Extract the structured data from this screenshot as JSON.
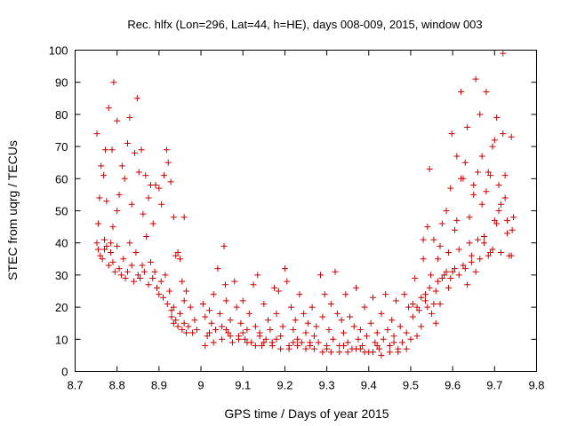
{
  "chart_data": {
    "type": "scatter",
    "title": "Rec. hlfx (Lon=296, Lat=44, h=HE), days 008-009, 2015, window 003",
    "xlabel": "GPS time / Days of year 2015",
    "ylabel": "STEC from uqrg / TECUs",
    "xlim": [
      8.7,
      9.8
    ],
    "ylim": [
      0,
      100
    ],
    "xticks": [
      "8.7",
      "8.8",
      "8.9",
      "9",
      "9.1",
      "9.2",
      "9.3",
      "9.4",
      "9.5",
      "9.6",
      "9.7",
      "9.8"
    ],
    "yticks": [
      "0",
      "10",
      "20",
      "30",
      "40",
      "50",
      "60",
      "70",
      "80",
      "90",
      "100"
    ],
    "grid": false,
    "marker": "+",
    "marker_color": "#cc0000",
    "series": [
      {
        "points": [
          [
            8.752,
            74
          ],
          [
            8.758,
            54
          ],
          [
            8.755,
            46
          ],
          [
            8.762,
            64
          ],
          [
            8.768,
            61
          ],
          [
            8.775,
            53
          ],
          [
            8.772,
            69
          ],
          [
            8.78,
            82
          ],
          [
            8.788,
            69
          ],
          [
            8.792,
            90
          ],
          [
            8.8,
            78
          ],
          [
            8.805,
            55
          ],
          [
            8.8,
            50
          ],
          [
            8.812,
            64
          ],
          [
            8.818,
            60
          ],
          [
            8.825,
            71
          ],
          [
            8.83,
            79
          ],
          [
            8.835,
            52
          ],
          [
            8.842,
            68
          ],
          [
            8.848,
            85
          ],
          [
            8.852,
            62
          ],
          [
            8.858,
            69
          ],
          [
            8.862,
            49
          ],
          [
            8.868,
            61
          ],
          [
            8.875,
            54
          ],
          [
            8.88,
            58
          ],
          [
            8.886,
            46
          ],
          [
            8.892,
            58
          ],
          [
            8.9,
            57
          ],
          [
            8.906,
            52
          ],
          [
            8.912,
            61
          ],
          [
            8.918,
            69
          ],
          [
            8.922,
            65
          ],
          [
            8.928,
            59
          ],
          [
            8.935,
            48
          ],
          [
            8.96,
            48
          ],
          [
            8.79,
            45
          ],
          [
            8.785,
            40
          ],
          [
            8.77,
            38
          ],
          [
            8.752,
            40
          ],
          [
            8.755,
            38
          ],
          [
            8.76,
            36
          ],
          [
            8.765,
            35
          ],
          [
            8.77,
            41
          ],
          [
            8.775,
            39
          ],
          [
            8.78,
            33
          ],
          [
            8.785,
            37
          ],
          [
            8.79,
            34
          ],
          [
            8.795,
            31
          ],
          [
            8.8,
            39
          ],
          [
            8.805,
            32
          ],
          [
            8.81,
            30
          ],
          [
            8.815,
            35
          ],
          [
            8.82,
            29
          ],
          [
            8.825,
            31
          ],
          [
            8.83,
            40
          ],
          [
            8.835,
            33
          ],
          [
            8.84,
            28
          ],
          [
            8.845,
            37
          ],
          [
            8.85,
            30
          ],
          [
            8.855,
            29
          ],
          [
            8.86,
            33
          ],
          [
            8.865,
            31
          ],
          [
            8.87,
            42
          ],
          [
            8.875,
            27
          ],
          [
            8.88,
            34
          ],
          [
            8.885,
            29
          ],
          [
            8.89,
            31
          ],
          [
            8.895,
            26
          ],
          [
            8.9,
            24
          ],
          [
            8.905,
            28
          ],
          [
            8.91,
            23
          ],
          [
            8.915,
            30
          ],
          [
            8.92,
            21
          ],
          [
            8.925,
            25
          ],
          [
            8.93,
            19
          ],
          [
            8.935,
            20
          ],
          [
            8.94,
            36
          ],
          [
            8.945,
            37
          ],
          [
            8.95,
            35
          ],
          [
            8.955,
            28
          ],
          [
            8.96,
            22
          ],
          [
            8.965,
            25
          ],
          [
            8.93,
            17
          ],
          [
            8.935,
            15
          ],
          [
            8.94,
            16
          ],
          [
            8.945,
            14
          ],
          [
            8.95,
            18
          ],
          [
            8.955,
            13
          ],
          [
            8.96,
            15
          ],
          [
            8.965,
            12
          ],
          [
            8.97,
            14
          ],
          [
            8.975,
            20
          ],
          [
            8.98,
            12
          ],
          [
            8.985,
            16
          ],
          [
            8.99,
            13
          ],
          [
            9.005,
            21
          ],
          [
            9.01,
            17
          ],
          [
            9.015,
            11
          ],
          [
            9.02,
            19
          ],
          [
            9.025,
            15
          ],
          [
            9.03,
            24
          ],
          [
            9.035,
            13
          ],
          [
            9.04,
            32
          ],
          [
            9.045,
            18
          ],
          [
            9.05,
            14
          ],
          [
            9.055,
            39
          ],
          [
            9.058,
            27
          ],
          [
            9.06,
            22
          ],
          [
            9.065,
            12
          ],
          [
            9.07,
            16
          ],
          [
            9.075,
            9
          ],
          [
            9.08,
            28
          ],
          [
            9.085,
            20
          ],
          [
            9.09,
            11
          ],
          [
            9.095,
            15
          ],
          [
            9.1,
            22
          ],
          [
            9.105,
            10
          ],
          [
            9.11,
            13
          ],
          [
            9.115,
            18
          ],
          [
            9.12,
            9
          ],
          [
            9.125,
            27
          ],
          [
            9.13,
            14
          ],
          [
            9.135,
            30
          ],
          [
            9.14,
            12
          ],
          [
            9.145,
            8
          ],
          [
            9.15,
            21
          ],
          [
            9.155,
            10
          ],
          [
            9.16,
            16
          ],
          [
            9.165,
            13
          ],
          [
            9.17,
            9
          ],
          [
            9.175,
            26
          ],
          [
            9.18,
            18
          ],
          [
            9.185,
            25
          ],
          [
            9.19,
            11
          ],
          [
            9.195,
            14
          ],
          [
            9.2,
            32
          ],
          [
            9.205,
            28
          ],
          [
            9.21,
            8
          ],
          [
            9.215,
            20
          ],
          [
            9.22,
            13
          ],
          [
            9.225,
            16
          ],
          [
            9.23,
            10
          ],
          [
            9.235,
            24
          ],
          [
            9.24,
            9
          ],
          [
            9.245,
            18
          ],
          [
            9.25,
            12
          ],
          [
            9.255,
            15
          ],
          [
            9.26,
            8
          ],
          [
            9.265,
            20
          ],
          [
            9.27,
            11
          ],
          [
            9.275,
            14
          ],
          [
            9.28,
            9
          ],
          [
            9.285,
            30
          ],
          [
            9.29,
            17
          ],
          [
            9.295,
            24
          ],
          [
            9.3,
            7
          ],
          [
            9.305,
            13
          ],
          [
            9.31,
            21
          ],
          [
            9.315,
            10
          ],
          [
            9.32,
            31
          ],
          [
            9.325,
            18
          ],
          [
            9.33,
            8
          ],
          [
            9.335,
            16
          ],
          [
            9.34,
            12
          ],
          [
            9.345,
            24
          ],
          [
            9.35,
            9
          ],
          [
            9.355,
            17
          ],
          [
            9.36,
            7
          ],
          [
            9.365,
            14
          ],
          [
            9.37,
            26
          ],
          [
            9.375,
            10
          ],
          [
            9.38,
            13
          ],
          [
            9.385,
            8
          ],
          [
            9.39,
            20
          ],
          [
            9.395,
            11
          ],
          [
            9.4,
            6
          ],
          [
            9.405,
            15
          ],
          [
            9.41,
            23
          ],
          [
            9.415,
            9
          ],
          [
            9.42,
            12
          ],
          [
            9.425,
            7
          ],
          [
            9.43,
            18
          ],
          [
            9.435,
            10
          ],
          [
            9.44,
            24
          ],
          [
            9.445,
            13
          ],
          [
            9.45,
            8
          ],
          [
            9.455,
            16
          ],
          [
            9.46,
            11
          ],
          [
            9.465,
            22
          ],
          [
            9.47,
            7
          ],
          [
            9.475,
            14
          ],
          [
            9.48,
            9
          ],
          [
            9.485,
            24
          ],
          [
            9.49,
            12
          ],
          [
            9.495,
            20
          ],
          [
            9.01,
            8
          ],
          [
            9.03,
            9
          ],
          [
            9.05,
            10
          ],
          [
            9.07,
            11
          ],
          [
            9.09,
            10
          ],
          [
            9.11,
            9
          ],
          [
            9.13,
            8
          ],
          [
            9.15,
            9
          ],
          [
            9.17,
            8
          ],
          [
            9.19,
            7
          ],
          [
            9.21,
            7
          ],
          [
            9.23,
            8
          ],
          [
            9.25,
            7
          ],
          [
            9.27,
            7
          ],
          [
            9.29,
            6
          ],
          [
            9.31,
            6
          ],
          [
            9.33,
            6
          ],
          [
            9.35,
            6
          ],
          [
            9.37,
            7
          ],
          [
            9.39,
            6
          ],
          [
            9.41,
            6
          ],
          [
            9.43,
            5
          ],
          [
            9.45,
            6
          ],
          [
            9.47,
            6
          ],
          [
            9.49,
            7
          ],
          [
            9.02,
            12
          ],
          [
            9.06,
            13
          ],
          [
            9.1,
            12
          ],
          [
            9.14,
            11
          ],
          [
            9.18,
            10
          ],
          [
            9.22,
            9
          ],
          [
            9.26,
            9
          ],
          [
            9.3,
            8
          ],
          [
            9.34,
            8
          ],
          [
            9.38,
            7
          ],
          [
            9.42,
            8
          ],
          [
            9.46,
            9
          ],
          [
            9.5,
            10
          ],
          [
            9.505,
            21
          ],
          [
            9.51,
            29
          ],
          [
            9.515,
            11
          ],
          [
            9.52,
            19
          ],
          [
            9.525,
            14
          ],
          [
            9.53,
            35
          ],
          [
            9.535,
            22
          ],
          [
            9.54,
            45
          ],
          [
            9.545,
            63
          ],
          [
            9.548,
            30
          ],
          [
            9.55,
            18
          ],
          [
            9.555,
            41
          ],
          [
            9.56,
            25
          ],
          [
            9.565,
            35
          ],
          [
            9.57,
            21
          ],
          [
            9.575,
            46
          ],
          [
            9.58,
            30
          ],
          [
            9.585,
            50
          ],
          [
            9.59,
            37
          ],
          [
            9.595,
            57
          ],
          [
            9.598,
            74
          ],
          [
            9.6,
            31
          ],
          [
            9.605,
            44
          ],
          [
            9.61,
            67
          ],
          [
            9.615,
            38
          ],
          [
            9.62,
            87
          ],
          [
            9.625,
            60
          ],
          [
            9.63,
            32
          ],
          [
            9.635,
            76
          ],
          [
            9.64,
            48
          ],
          [
            9.645,
            36
          ],
          [
            9.65,
            58
          ],
          [
            9.655,
            91
          ],
          [
            9.66,
            41
          ],
          [
            9.665,
            80
          ],
          [
            9.67,
            52
          ],
          [
            9.675,
            42
          ],
          [
            9.68,
            87
          ],
          [
            9.685,
            62
          ],
          [
            9.69,
            37
          ],
          [
            9.695,
            70
          ],
          [
            9.7,
            47
          ],
          [
            9.705,
            79
          ],
          [
            9.71,
            58
          ],
          [
            9.715,
            37
          ],
          [
            9.72,
            99
          ],
          [
            9.725,
            61
          ],
          [
            9.73,
            47
          ],
          [
            9.735,
            36
          ],
          [
            9.74,
            73
          ],
          [
            9.742,
            44
          ],
          [
            9.745,
            48
          ],
          [
            9.505,
            17
          ],
          [
            9.515,
            20
          ],
          [
            9.525,
            23
          ],
          [
            9.535,
            24
          ],
          [
            9.545,
            26
          ],
          [
            9.555,
            21
          ],
          [
            9.565,
            28
          ],
          [
            9.575,
            29
          ],
          [
            9.585,
            31
          ],
          [
            9.595,
            29
          ],
          [
            9.605,
            32
          ],
          [
            9.615,
            30
          ],
          [
            9.625,
            33
          ],
          [
            9.635,
            27
          ],
          [
            9.645,
            34
          ],
          [
            9.655,
            31
          ],
          [
            9.665,
            35
          ],
          [
            9.675,
            40
          ],
          [
            9.685,
            36
          ],
          [
            9.695,
            38
          ],
          [
            9.705,
            46
          ],
          [
            9.715,
            52
          ],
          [
            9.725,
            54
          ],
          [
            9.53,
            41
          ],
          [
            9.54,
            20
          ],
          [
            9.56,
            15
          ],
          [
            9.57,
            39
          ],
          [
            9.59,
            26
          ],
          [
            9.61,
            47
          ],
          [
            9.62,
            60
          ],
          [
            9.63,
            65
          ],
          [
            9.64,
            40
          ],
          [
            9.65,
            55
          ],
          [
            9.66,
            62
          ],
          [
            9.67,
            67
          ],
          [
            9.68,
            56
          ],
          [
            9.69,
            61
          ],
          [
            9.7,
            72
          ],
          [
            9.71,
            50
          ],
          [
            9.72,
            74
          ],
          [
            9.73,
            43
          ],
          [
            9.74,
            36
          ]
        ]
      }
    ]
  }
}
